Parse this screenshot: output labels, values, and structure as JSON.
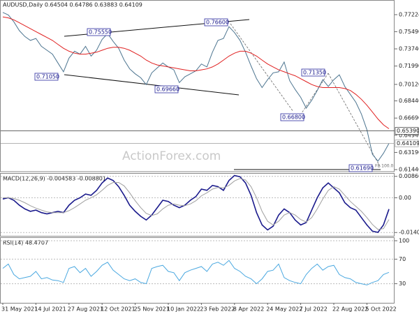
{
  "chart_data": [
    {
      "type": "line",
      "title": "AUDUSD,Daily 0.64504 0.64786 0.63883 0.64109",
      "watermark": "ActionForex.com",
      "series": [
        {
          "color": "#4d7590",
          "values": [
            0.7745,
            0.772,
            0.765,
            0.756,
            0.75,
            0.746,
            0.748,
            0.74,
            0.736,
            0.732,
            0.723,
            0.714,
            0.728,
            0.735,
            0.732,
            0.74,
            0.73,
            0.736,
            0.747,
            0.753,
            0.745,
            0.738,
            0.726,
            0.717,
            0.712,
            0.708,
            0.701,
            0.713,
            0.718,
            0.723,
            0.719,
            0.716,
            0.703,
            0.709,
            0.712,
            0.715,
            0.722,
            0.719,
            0.734,
            0.746,
            0.748,
            0.76,
            0.754,
            0.746,
            0.734,
            0.72,
            0.707,
            0.698,
            0.706,
            0.713,
            0.714,
            0.724,
            0.705,
            0.696,
            0.688,
            0.677,
            0.685,
            0.695,
            0.706,
            0.699,
            0.706,
            0.711,
            0.699,
            0.691,
            0.683,
            0.671,
            0.655,
            0.63,
            0.623,
            0.631,
            0.6411
          ]
        },
        {
          "color": "#e02020",
          "values": [
            0.77,
            0.769,
            0.767,
            0.764,
            0.761,
            0.758,
            0.755,
            0.752,
            0.749,
            0.746,
            0.742,
            0.738,
            0.735,
            0.733,
            0.732,
            0.732,
            0.733,
            0.734,
            0.736,
            0.738,
            0.739,
            0.739,
            0.738,
            0.736,
            0.733,
            0.73,
            0.726,
            0.723,
            0.721,
            0.72,
            0.719,
            0.718,
            0.717,
            0.716,
            0.715,
            0.715,
            0.716,
            0.717,
            0.719,
            0.722,
            0.726,
            0.73,
            0.733,
            0.735,
            0.735,
            0.733,
            0.73,
            0.726,
            0.722,
            0.719,
            0.716,
            0.714,
            0.712,
            0.71,
            0.707,
            0.704,
            0.701,
            0.699,
            0.698,
            0.698,
            0.698,
            0.698,
            0.697,
            0.695,
            0.691,
            0.686,
            0.68,
            0.673,
            0.666,
            0.66,
            0.656
          ]
        }
      ],
      "ylim": [
        0.6123,
        0.7815
      ],
      "yticks": [
        {
          "value": 0.77224,
          "label": "0.77224"
        },
        {
          "value": 0.7549,
          "label": "0.75490"
        },
        {
          "value": 0.7374,
          "label": "0.73740"
        },
        {
          "value": 0.7199,
          "label": "0.71990"
        },
        {
          "value": 0.7012,
          "label": "0.70120"
        },
        {
          "value": 0.6844,
          "label": "0.68440"
        },
        {
          "value": 0.6669,
          "label": "0.66690"
        },
        {
          "value": 0.6494,
          "label": "0.64940"
        },
        {
          "value": 0.6319,
          "label": "0.63190"
        },
        {
          "value": 0.6144,
          "label": "0.61440"
        }
      ],
      "price_lines": [
        {
          "value": 0.6539,
          "label": "0.65390",
          "color": "#333333"
        },
        {
          "value": 0.64109,
          "label": "0.64109",
          "color": "#9a9a9a"
        }
      ],
      "annotations": [
        "0.75550",
        "0.76600",
        "0.71050",
        "0.69660",
        "0.71350",
        "0.66800",
        "0.61690"
      ],
      "fe_label": "FE 100.0"
    },
    {
      "type": "line",
      "title": "MACD(12,26,9) -0.004583 -0.008801",
      "series": [
        {
          "color": "#1a1a8c",
          "values": [
            -0.0005,
            0.0,
            -0.001,
            -0.003,
            -0.0045,
            -0.0055,
            -0.005,
            -0.006,
            -0.0065,
            -0.006,
            -0.0055,
            -0.006,
            -0.003,
            -0.001,
            0.0,
            0.0015,
            0.001,
            0.003,
            0.006,
            0.008,
            0.007,
            0.0045,
            0.001,
            -0.003,
            -0.0055,
            -0.0075,
            -0.009,
            -0.007,
            -0.004,
            -0.001,
            -0.0015,
            -0.003,
            -0.004,
            -0.003,
            -0.001,
            0.0005,
            0.0035,
            0.003,
            0.005,
            0.0045,
            0.003,
            0.007,
            0.009,
            0.0085,
            0.006,
            0.001,
            -0.006,
            -0.011,
            -0.013,
            -0.0115,
            -0.007,
            -0.0045,
            -0.006,
            -0.009,
            -0.011,
            -0.01,
            -0.005,
            0.0,
            0.004,
            0.006,
            0.004,
            0.002,
            -0.002,
            -0.004,
            -0.005,
            -0.008,
            -0.011,
            -0.0135,
            -0.014,
            -0.011,
            -0.0046
          ]
        },
        {
          "color": "#a0a0a0",
          "values": [
            0.0,
            0.0,
            -0.0003,
            -0.001,
            -0.002,
            -0.0032,
            -0.0042,
            -0.005,
            -0.0057,
            -0.006,
            -0.006,
            -0.006,
            -0.0052,
            -0.004,
            -0.0025,
            -0.001,
            0.0,
            0.0012,
            0.003,
            0.005,
            0.0062,
            0.0062,
            0.0048,
            0.002,
            -0.0012,
            -0.004,
            -0.0063,
            -0.0072,
            -0.0065,
            -0.0045,
            -0.003,
            -0.0025,
            -0.003,
            -0.0032,
            -0.0025,
            -0.0012,
            0.0008,
            0.002,
            0.0035,
            0.0042,
            0.004,
            0.005,
            0.0068,
            0.0078,
            0.0072,
            0.0045,
            0.0,
            -0.0055,
            -0.0095,
            -0.011,
            -0.0095,
            -0.007,
            -0.006,
            -0.007,
            -0.0088,
            -0.0098,
            -0.008,
            -0.0045,
            -0.0005,
            0.003,
            0.0045,
            0.0035,
            0.001,
            -0.0015,
            -0.0035,
            -0.0055,
            -0.008,
            -0.0108,
            -0.0128,
            -0.0125,
            -0.0088
          ]
        }
      ],
      "ylim": [
        -0.0154,
        0.01
      ],
      "yticks": [
        0.008662,
        {
          "value": 0,
          "label": "0.00"
        },
        -0.014055
      ]
    },
    {
      "type": "line",
      "title": "RSI(14) 48.4707",
      "categories": [
        "31 May 2021",
        null,
        null,
        null,
        null,
        null,
        "14 Jul 2021",
        null,
        null,
        null,
        null,
        null,
        "27 Aug 2021",
        null,
        null,
        null,
        null,
        null,
        "12 Oct 2021",
        null,
        null,
        null,
        null,
        null,
        "25 Nov 2021",
        null,
        null,
        null,
        null,
        null,
        "10 Jan 2022",
        null,
        null,
        null,
        null,
        null,
        "23 Feb 2022",
        null,
        null,
        null,
        null,
        null,
        "8 Apr 2022",
        null,
        null,
        null,
        null,
        null,
        "24 May 2022",
        null,
        null,
        null,
        null,
        null,
        "7 Jul 2022",
        null,
        null,
        null,
        null,
        null,
        "22 Aug 2022",
        null,
        null,
        null,
        null,
        null,
        "5 Oct 2022",
        null,
        null,
        null,
        null
      ],
      "series": [
        {
          "color": "#4aa8e0",
          "values": [
            55,
            62,
            45,
            38,
            40,
            42,
            50,
            38,
            40,
            36,
            35,
            32,
            55,
            58,
            48,
            55,
            42,
            50,
            60,
            65,
            52,
            45,
            38,
            35,
            38,
            32,
            30,
            55,
            58,
            60,
            50,
            48,
            35,
            48,
            52,
            55,
            58,
            50,
            62,
            65,
            60,
            68,
            55,
            50,
            42,
            38,
            30,
            38,
            50,
            52,
            62,
            40,
            35,
            32,
            30,
            45,
            55,
            62,
            52,
            58,
            60,
            45,
            40,
            38,
            32,
            30,
            28,
            32,
            35,
            45,
            48.4707
          ]
        }
      ],
      "ylim": [
        0,
        100
      ],
      "yticks": [
        100,
        70,
        30
      ]
    }
  ]
}
